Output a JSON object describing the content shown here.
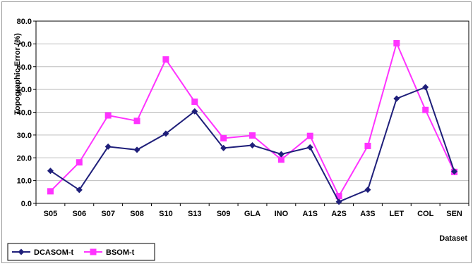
{
  "chart_data": {
    "type": "line",
    "ylabel": "Topographic Error (%)",
    "xlabel": "Dataset",
    "ylim": [
      0,
      80
    ],
    "y_ticks": [
      "0.0",
      "10.0",
      "20.0",
      "30.0",
      "40.0",
      "50.0",
      "60.0",
      "70.0",
      "80.0"
    ],
    "categories": [
      "S05",
      "S06",
      "S07",
      "S08",
      "S10",
      "S13",
      "S09",
      "GLA",
      "INO",
      "A1S",
      "A2S",
      "A3S",
      "LET",
      "COL",
      "SEN"
    ],
    "legend_position": "bottom-left",
    "grid": "horizontal",
    "series": [
      {
        "name": "DCASOM-t",
        "color": "#1f1f7a",
        "marker": "diamond",
        "values": [
          14.3,
          5.9,
          24.9,
          23.5,
          30.6,
          40.4,
          24.3,
          25.5,
          21.6,
          24.6,
          0.7,
          6.0,
          46.0,
          51.0,
          14.0
        ]
      },
      {
        "name": "BSOM-t",
        "color": "#ff33ff",
        "marker": "square",
        "values": [
          5.3,
          18.0,
          38.6,
          36.2,
          63.2,
          44.6,
          28.6,
          29.8,
          19.2,
          29.6,
          3.2,
          25.2,
          70.3,
          41.0,
          13.8
        ]
      }
    ]
  }
}
